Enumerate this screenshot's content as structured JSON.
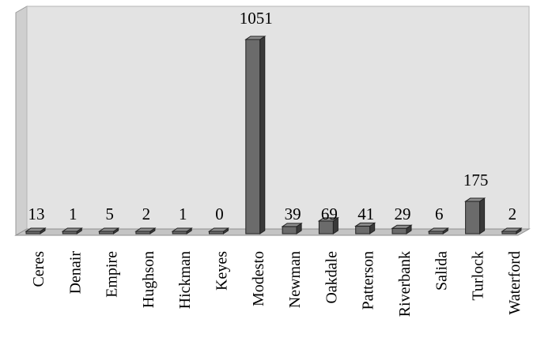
{
  "chart_data": {
    "type": "bar",
    "style": "3d-column",
    "categories": [
      "Ceres",
      "Denair",
      "Empire",
      "Hughson",
      "Hickman",
      "Keyes",
      "Modesto",
      "Newman",
      "Oakdale",
      "Patterson",
      "Riverbank",
      "Salida",
      "Turlock",
      "Waterford"
    ],
    "values": [
      13,
      1,
      5,
      2,
      1,
      0,
      1051,
      39,
      69,
      41,
      29,
      6,
      175,
      2
    ],
    "title": "",
    "xlabel": "",
    "ylabel": "",
    "ylim": [
      0,
      1100
    ],
    "grid": false,
    "legend": "none",
    "data_labels": true,
    "colors": {
      "bar_front": "#6b6b6b",
      "bar_side": "#3a3a3a",
      "bar_top": "#8c8c8c",
      "wall": "#e3e3e3",
      "floor": "#c4c4c4"
    }
  }
}
